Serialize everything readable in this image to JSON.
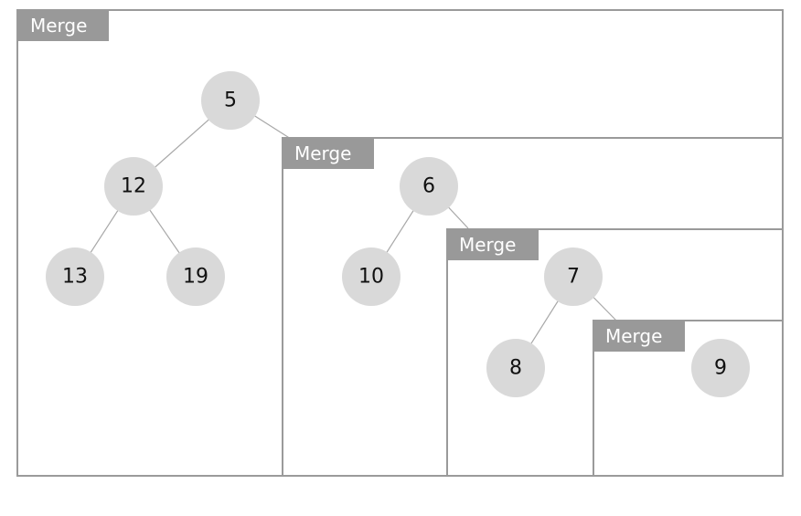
{
  "merge_label": "Merge",
  "merges": [
    {
      "label": "Merge"
    },
    {
      "label": "Merge"
    },
    {
      "label": "Merge"
    },
    {
      "label": "Merge"
    }
  ],
  "nodes": [
    {
      "id": "n5",
      "value": "5"
    },
    {
      "id": "n12",
      "value": "12"
    },
    {
      "id": "n13",
      "value": "13"
    },
    {
      "id": "n19",
      "value": "19"
    },
    {
      "id": "n6",
      "value": "6"
    },
    {
      "id": "n10",
      "value": "10"
    },
    {
      "id": "n7",
      "value": "7"
    },
    {
      "id": "n8",
      "value": "8"
    },
    {
      "id": "n9",
      "value": "9"
    }
  ],
  "edges": [
    {
      "from": "5",
      "to": "12"
    },
    {
      "from": "5",
      "to": "6"
    },
    {
      "from": "12",
      "to": "13"
    },
    {
      "from": "12",
      "to": "19"
    },
    {
      "from": "6",
      "to": "10"
    },
    {
      "from": "6",
      "to": "7"
    },
    {
      "from": "7",
      "to": "8"
    },
    {
      "from": "7",
      "to": "9"
    }
  ],
  "colors": {
    "box_border": "#9a9a9a",
    "tag_fill": "#999999",
    "tag_text": "#ffffff",
    "node_fill": "#d9d9d9",
    "node_text": "#111111",
    "edge": "#a8a8a8"
  }
}
